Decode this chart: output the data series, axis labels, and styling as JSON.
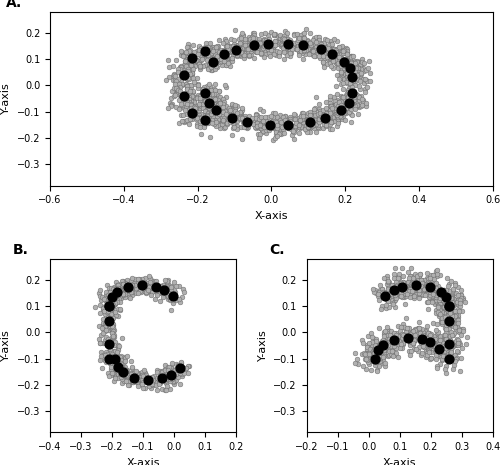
{
  "panel_A": {
    "label": "A.",
    "xlim": [
      -0.6,
      0.6
    ],
    "ylim": [
      -0.38,
      0.28
    ],
    "xticks": [
      -0.6,
      -0.4,
      -0.2,
      0.0,
      0.2,
      0.4,
      0.6
    ],
    "yticks": [
      -0.3,
      -0.2,
      -0.1,
      0.0,
      0.1,
      0.2
    ],
    "xlabel": "X-axis",
    "ylabel": "Y-axis",
    "seed": 42
  },
  "panel_B": {
    "label": "B.",
    "xlim": [
      -0.4,
      0.2
    ],
    "ylim": [
      -0.38,
      0.28
    ],
    "xticks": [
      -0.4,
      -0.3,
      -0.2,
      -0.1,
      0.0,
      0.1,
      0.2
    ],
    "yticks": [
      -0.3,
      -0.2,
      -0.1,
      0.0,
      0.1,
      0.2
    ],
    "xlabel": "X-axis",
    "ylabel": "Y-axis",
    "seed": 123
  },
  "panel_C": {
    "label": "C.",
    "xlim": [
      -0.2,
      0.4
    ],
    "ylim": [
      -0.38,
      0.28
    ],
    "xticks": [
      -0.2,
      -0.1,
      0.0,
      0.1,
      0.2,
      0.3,
      0.4
    ],
    "yticks": [
      -0.3,
      -0.2,
      -0.1,
      0.0,
      0.1,
      0.2
    ],
    "xlabel": "X-axis",
    "ylabel": "Y-axis",
    "seed": 77
  },
  "scatter_color": "#b0b0b0",
  "scatter_edge": "#606060",
  "landmark_color": "#000000",
  "scatter_size": 12,
  "landmark_size": 40,
  "scatter_lw": 0.3,
  "background_color": "#ffffff"
}
